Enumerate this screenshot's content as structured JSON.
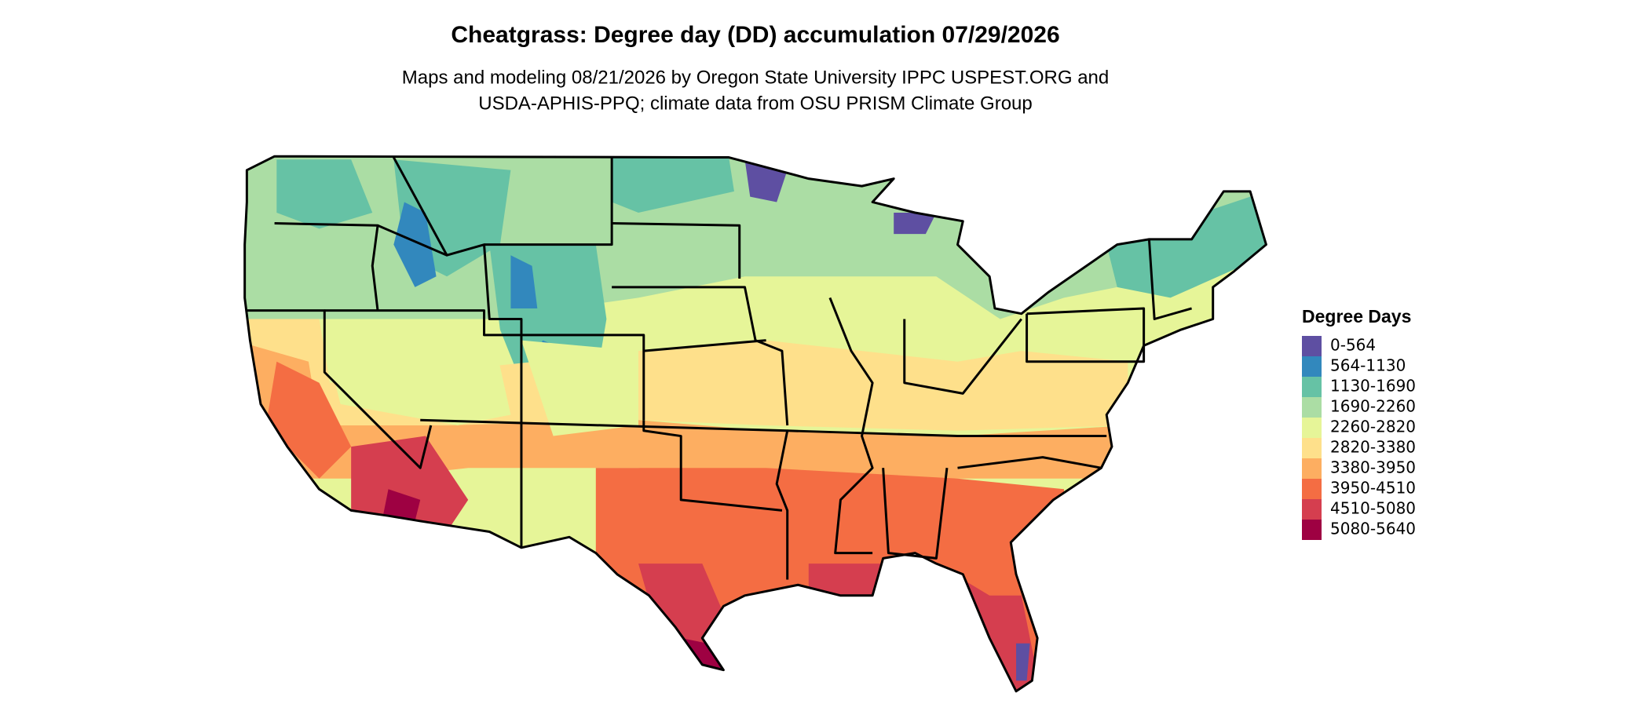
{
  "header": {
    "title": "Cheatgrass: Degree day (DD) accumulation 07/29/2026",
    "subtitle_lines": [
      "Maps and modeling 08/21/2026 by Oregon State University IPPC USPEST.ORG and",
      "USDA-APHIS-PPQ; climate data from OSU PRISM Climate Group"
    ]
  },
  "legend": {
    "title": "Degree Days",
    "items": [
      {
        "label": "0-564",
        "color": "#5e4fa2"
      },
      {
        "label": "564-1130",
        "color": "#3288bd"
      },
      {
        "label": "1130-1690",
        "color": "#66c2a5"
      },
      {
        "label": "1690-2260",
        "color": "#abdda4"
      },
      {
        "label": "2260-2820",
        "color": "#e6f598"
      },
      {
        "label": "2820-3380",
        "color": "#fee08b"
      },
      {
        "label": "3380-3950",
        "color": "#fdae61"
      },
      {
        "label": "3950-4510",
        "color": "#f46d43"
      },
      {
        "label": "4510-5080",
        "color": "#d53e4f"
      },
      {
        "label": "5080-5640",
        "color": "#9e0142"
      }
    ]
  }
}
